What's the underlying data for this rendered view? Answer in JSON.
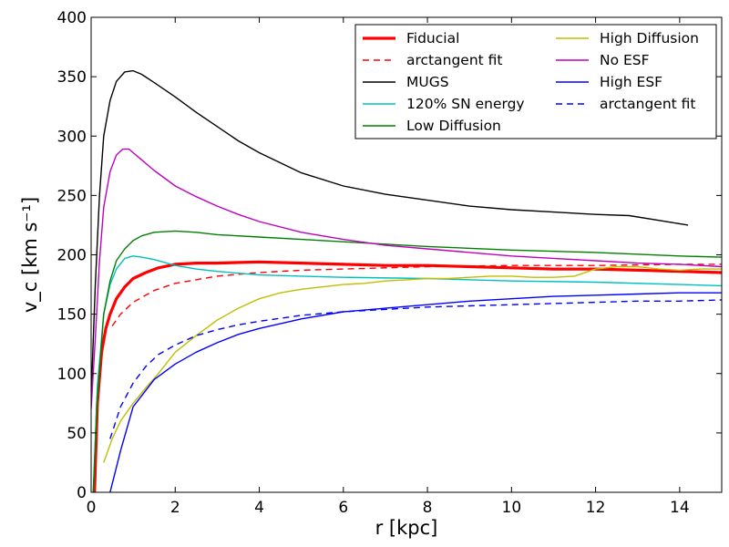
{
  "chart_data": {
    "type": "line",
    "title": "",
    "xlabel": "r [kpc]",
    "ylabel": "v_c [km s⁻¹]",
    "xlim": [
      0,
      15
    ],
    "ylim": [
      0,
      400
    ],
    "xticks": [
      0,
      2,
      4,
      6,
      8,
      10,
      12,
      14
    ],
    "yticks": [
      0,
      50,
      100,
      150,
      200,
      250,
      300,
      350,
      400
    ],
    "legend_position": "top-right",
    "series": [
      {
        "name": "Fiducial",
        "color": "#ff0000",
        "style": "solid",
        "width": 3.2,
        "x": [
          0.08,
          0.15,
          0.25,
          0.35,
          0.45,
          0.6,
          0.8,
          1.0,
          1.3,
          1.6,
          2.0,
          2.5,
          3.0,
          4.0,
          5.0,
          6.0,
          7.0,
          8.0,
          9.0,
          10.0,
          11.0,
          12.0,
          13.0,
          14.0,
          15.0
        ],
        "y": [
          0,
          75,
          118,
          138,
          150,
          163,
          173,
          180,
          185,
          189,
          192,
          193,
          193,
          194,
          193,
          192,
          191,
          191,
          190,
          189,
          188,
          188,
          187,
          186,
          185
        ]
      },
      {
        "name": "arctangent fit",
        "color": "#ff0000",
        "style": "dashed",
        "width": 1.4,
        "x": [
          0.5,
          0.7,
          1.0,
          1.5,
          2.0,
          3.0,
          4.0,
          5.0,
          6.0,
          8.0,
          10.0,
          12.0,
          14.0,
          15.0
        ],
        "y": [
          140,
          150,
          160,
          170,
          176,
          182,
          185,
          187,
          188,
          190,
          191,
          191,
          192,
          192
        ]
      },
      {
        "name": "MUGS",
        "color": "#000000",
        "style": "solid",
        "width": 1.4,
        "x": [
          0.0,
          0.1,
          0.2,
          0.3,
          0.45,
          0.6,
          0.8,
          1.0,
          1.2,
          1.5,
          2.0,
          2.5,
          3.0,
          3.5,
          4.0,
          5.0,
          6.0,
          7.0,
          8.0,
          9.0,
          10.0,
          11.0,
          12.0,
          12.8,
          13.5,
          14.2
        ],
        "y": [
          80,
          175,
          250,
          300,
          330,
          346,
          354,
          355,
          352,
          345,
          333,
          320,
          308,
          296,
          286,
          269,
          258,
          251,
          246,
          241,
          238,
          236,
          234,
          233,
          229,
          225
        ]
      },
      {
        "name": "120% SN energy",
        "color": "#00bfbf",
        "style": "solid",
        "width": 1.4,
        "x": [
          0.05,
          0.15,
          0.3,
          0.45,
          0.6,
          0.8,
          1.0,
          1.2,
          1.5,
          2.0,
          2.5,
          3.0,
          4.0,
          5.0,
          6.0,
          8.0,
          10.0,
          12.0,
          14.0,
          15.0
        ],
        "y": [
          0,
          90,
          150,
          175,
          188,
          197,
          199,
          198,
          196,
          191,
          188,
          186,
          183,
          182,
          181,
          180,
          178,
          177,
          175,
          174
        ]
      },
      {
        "name": "Low Diffusion",
        "color": "#008000",
        "style": "solid",
        "width": 1.4,
        "x": [
          0.05,
          0.15,
          0.3,
          0.45,
          0.6,
          0.8,
          1.0,
          1.2,
          1.5,
          2.0,
          2.5,
          3.0,
          4.0,
          5.0,
          6.0,
          8.0,
          10.0,
          12.0,
          14.0,
          15.0
        ],
        "y": [
          0,
          80,
          150,
          178,
          195,
          205,
          212,
          216,
          219,
          220,
          219,
          217,
          215,
          213,
          211,
          207,
          204,
          202,
          199,
          198
        ]
      },
      {
        "name": "High Diffusion",
        "color": "#bfbf00",
        "style": "solid",
        "width": 1.4,
        "x": [
          0.3,
          0.5,
          0.7,
          1.0,
          1.3,
          1.6,
          2.0,
          2.5,
          3.0,
          3.5,
          4.0,
          4.5,
          5.0,
          5.5,
          6.0,
          6.5,
          7.0,
          7.5,
          8.0,
          8.5,
          9.0,
          9.5,
          10.0,
          10.5,
          11.0,
          11.5,
          12.0,
          12.5,
          13.0,
          13.5,
          14.0,
          14.5,
          15.0
        ],
        "y": [
          25,
          45,
          60,
          75,
          88,
          100,
          118,
          132,
          145,
          155,
          163,
          168,
          171,
          173,
          175,
          176,
          178,
          179,
          180,
          180,
          181,
          182,
          182,
          181,
          181,
          182,
          188,
          190,
          190,
          188,
          187,
          188,
          188
        ]
      },
      {
        "name": "No ESF",
        "color": "#bf00bf",
        "style": "solid",
        "width": 1.4,
        "x": [
          0.0,
          0.1,
          0.2,
          0.3,
          0.45,
          0.6,
          0.75,
          0.9,
          1.0,
          1.2,
          1.5,
          2.0,
          2.5,
          3.0,
          3.5,
          4.0,
          5.0,
          6.0,
          7.0,
          8.0,
          9.0,
          10.0,
          11.0,
          12.0,
          13.0,
          14.0,
          15.0
        ],
        "y": [
          70,
          130,
          195,
          240,
          270,
          284,
          289,
          289,
          286,
          280,
          271,
          258,
          249,
          241,
          234,
          228,
          219,
          213,
          208,
          205,
          202,
          199,
          197,
          195,
          193,
          192,
          190
        ]
      },
      {
        "name": "High ESF",
        "color": "#0000ff",
        "style": "solid",
        "width": 1.4,
        "x": [
          0.45,
          0.7,
          1.0,
          1.5,
          2.0,
          2.5,
          3.0,
          3.5,
          4.0,
          5.0,
          6.0,
          7.0,
          8.0,
          9.0,
          10.0,
          11.0,
          12.0,
          13.0,
          14.0,
          15.0
        ],
        "y": [
          0,
          35,
          72,
          95,
          108,
          118,
          126,
          133,
          138,
          146,
          152,
          155,
          158,
          161,
          163,
          165,
          166,
          167,
          168,
          168
        ]
      },
      {
        "name": "arctangent fit",
        "color": "#0000ff",
        "style": "dashed",
        "width": 1.4,
        "x": [
          0.45,
          0.7,
          1.0,
          1.3,
          1.6,
          2.0,
          2.5,
          3.0,
          3.5,
          4.0,
          5.0,
          6.0,
          7.0,
          8.0,
          9.0,
          10.0,
          11.0,
          12.0,
          13.0,
          14.0,
          15.0
        ],
        "y": [
          45,
          72,
          92,
          106,
          116,
          124,
          132,
          137,
          141,
          144,
          149,
          152,
          154,
          156,
          157,
          158,
          159,
          160,
          161,
          161,
          162
        ]
      }
    ]
  }
}
